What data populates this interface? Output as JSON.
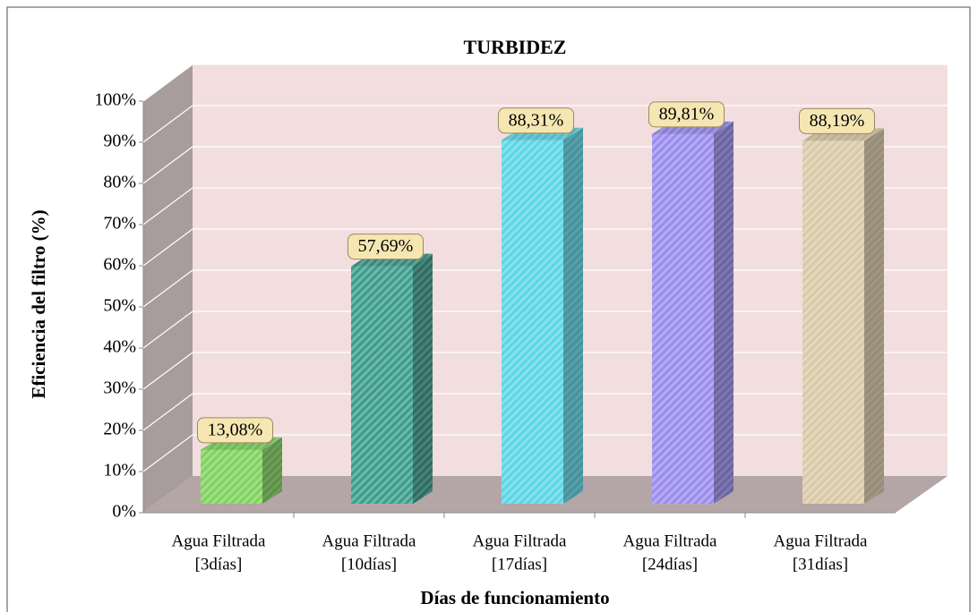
{
  "chart_data": {
    "type": "bar3d",
    "title": "TURBIDEZ",
    "x_label": "Días de funcionamiento",
    "y_label": "Eficiencia del filtro (%)",
    "categories": [
      [
        "Agua Filtrada",
        "[3días]"
      ],
      [
        "Agua Filtrada",
        "[10días]"
      ],
      [
        "Agua Filtrada",
        "[17días]"
      ],
      [
        "Agua Filtrada",
        "[24días]"
      ],
      [
        "Agua Filtrada",
        "[31días]"
      ]
    ],
    "values": [
      13.08,
      57.69,
      88.31,
      89.81,
      88.19
    ],
    "value_labels": [
      "13,08%",
      "57,69%",
      "88,31%",
      "89,81%",
      "88,19%"
    ],
    "colors": [
      "#7ed35c",
      "#3a9c8c",
      "#5ad6e6",
      "#9a8cee",
      "#d9c9a6"
    ],
    "ylim": [
      0,
      100
    ],
    "yticks": [
      {
        "value": 0,
        "label": "0%"
      },
      {
        "value": 10,
        "label": "10%"
      },
      {
        "value": 20,
        "label": "20%"
      },
      {
        "value": 30,
        "label": "30%"
      },
      {
        "value": 40,
        "label": "40%"
      },
      {
        "value": 50,
        "label": "50%"
      },
      {
        "value": 60,
        "label": "60%"
      },
      {
        "value": 70,
        "label": "70%"
      },
      {
        "value": 80,
        "label": "80%"
      },
      {
        "value": 90,
        "label": "90%"
      },
      {
        "value": 100,
        "label": "100%"
      }
    ],
    "grid": true
  }
}
